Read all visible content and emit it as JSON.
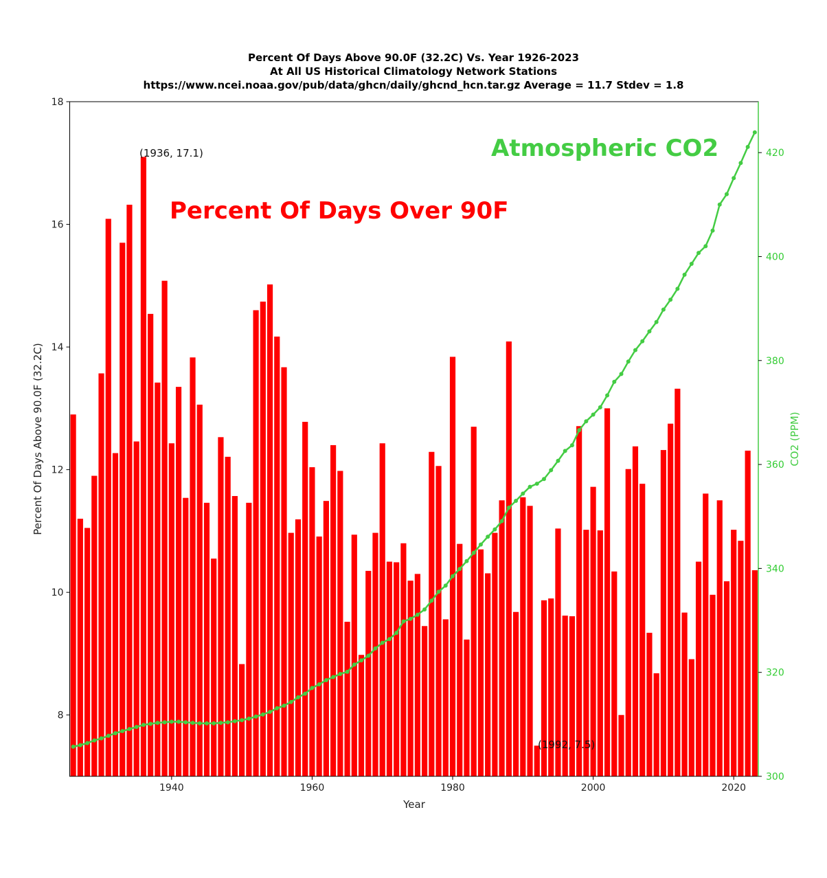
{
  "chart_data": {
    "type": "bar",
    "title_lines": [
      "Percent Of Days Above 90.0F (32.2C) Vs. Year 1926-2023",
      "At All US Historical Climatology Network Stations",
      "https://www.ncei.noaa.gov/pub/data/ghcn/daily/ghcnd_hcn.tar.gz Average = 11.7 Stdev = 1.8"
    ],
    "xlabel": "Year",
    "ylabel": "Percent Of Days Above 90.0F (32.2C)",
    "y2label": "CO2 (PPM)",
    "xlim": [
      1925.5,
      2023.5
    ],
    "ylim": [
      7,
      18
    ],
    "y2lim": [
      300,
      429.8
    ],
    "xticks": [
      1940,
      1960,
      1980,
      2000,
      2020
    ],
    "yticks": [
      8,
      10,
      12,
      14,
      16,
      18
    ],
    "y2ticks": [
      300,
      320,
      340,
      360,
      380,
      400,
      420
    ],
    "grid": false,
    "colors": {
      "bars": "#ff0000",
      "co2": "#44cc44",
      "co2_axis": "#33cc33"
    },
    "annotations": [
      {
        "text": "(1936, 17.1)",
        "x": 1936,
        "y": 17.1
      },
      {
        "text": "(1992, 7.5)",
        "x": 1992,
        "y": 7.5
      }
    ],
    "overlay_labels": {
      "percent": "Percent Of Days Over 90F",
      "co2": "Atmospheric CO2"
    },
    "years": [
      1926,
      1927,
      1928,
      1929,
      1930,
      1931,
      1932,
      1933,
      1934,
      1935,
      1936,
      1937,
      1938,
      1939,
      1940,
      1941,
      1942,
      1943,
      1944,
      1945,
      1946,
      1947,
      1948,
      1949,
      1950,
      1951,
      1952,
      1953,
      1954,
      1955,
      1956,
      1957,
      1958,
      1959,
      1960,
      1961,
      1962,
      1963,
      1964,
      1965,
      1966,
      1967,
      1968,
      1969,
      1970,
      1971,
      1972,
      1973,
      1974,
      1975,
      1976,
      1977,
      1978,
      1979,
      1980,
      1981,
      1982,
      1983,
      1984,
      1985,
      1986,
      1987,
      1988,
      1989,
      1990,
      1991,
      1992,
      1993,
      1994,
      1995,
      1996,
      1997,
      1998,
      1999,
      2000,
      2001,
      2002,
      2003,
      2004,
      2005,
      2006,
      2007,
      2008,
      2009,
      2010,
      2011,
      2012,
      2013,
      2014,
      2015,
      2016,
      2017,
      2018,
      2019,
      2020,
      2021,
      2022,
      2023
    ],
    "series": [
      {
        "name": "Percent Of Days Over 90F",
        "axis": "left",
        "kind": "bar",
        "values": [
          12.9,
          11.2,
          11.05,
          11.9,
          13.57,
          16.09,
          12.27,
          15.7,
          16.32,
          12.46,
          17.1,
          14.54,
          13.42,
          15.08,
          12.43,
          13.35,
          11.54,
          13.83,
          13.06,
          11.46,
          10.55,
          12.53,
          12.21,
          11.57,
          8.83,
          11.46,
          14.6,
          14.74,
          15.02,
          14.17,
          13.67,
          10.97,
          11.19,
          12.78,
          12.04,
          10.91,
          11.49,
          12.4,
          11.98,
          9.52,
          10.94,
          8.98,
          10.35,
          10.97,
          12.43,
          10.5,
          10.49,
          10.8,
          10.19,
          10.3,
          9.45,
          12.29,
          12.06,
          9.56,
          13.84,
          10.79,
          9.23,
          12.7,
          10.7,
          10.31,
          10.97,
          11.5,
          14.09,
          9.68,
          11.55,
          11.41,
          7.5,
          9.87,
          9.9,
          11.04,
          9.62,
          9.61,
          12.71,
          11.02,
          11.72,
          11.01,
          13.0,
          10.34,
          8.0,
          12.01,
          12.38,
          11.77,
          9.34,
          8.68,
          12.32,
          12.75,
          13.32,
          9.67,
          8.91,
          10.5,
          11.61,
          9.96,
          11.5,
          10.18,
          11.02,
          10.84,
          12.31,
          10.36
        ]
      },
      {
        "name": "Atmospheric CO2",
        "axis": "right",
        "kind": "line",
        "values": [
          305.7,
          306.0,
          306.4,
          306.9,
          307.3,
          307.8,
          308.3,
          308.7,
          309.1,
          309.5,
          309.9,
          310.1,
          310.3,
          310.4,
          310.5,
          310.5,
          310.4,
          310.3,
          310.2,
          310.2,
          310.2,
          310.3,
          310.4,
          310.6,
          310.8,
          311.1,
          311.5,
          311.9,
          312.4,
          313.1,
          313.6,
          314.3,
          315.2,
          315.9,
          317.0,
          317.7,
          318.5,
          319.1,
          319.7,
          320.1,
          321.5,
          322.3,
          323.2,
          324.6,
          325.7,
          326.4,
          327.6,
          329.8,
          330.3,
          331.1,
          332.1,
          333.8,
          335.5,
          336.7,
          338.5,
          339.9,
          341.4,
          343.0,
          344.6,
          346.1,
          347.5,
          349.1,
          351.7,
          353.0,
          354.4,
          355.7,
          356.3,
          357.2,
          358.9,
          360.7,
          362.6,
          363.7,
          366.6,
          368.3,
          369.6,
          371.0,
          373.3,
          375.9,
          377.4,
          379.8,
          382.0,
          383.7,
          385.6,
          387.4,
          389.8,
          391.7,
          393.8,
          396.5,
          398.6,
          400.7,
          402.0,
          405.0,
          410.0,
          412.0,
          415.1,
          418.0,
          421.1,
          423.9
        ]
      }
    ]
  }
}
